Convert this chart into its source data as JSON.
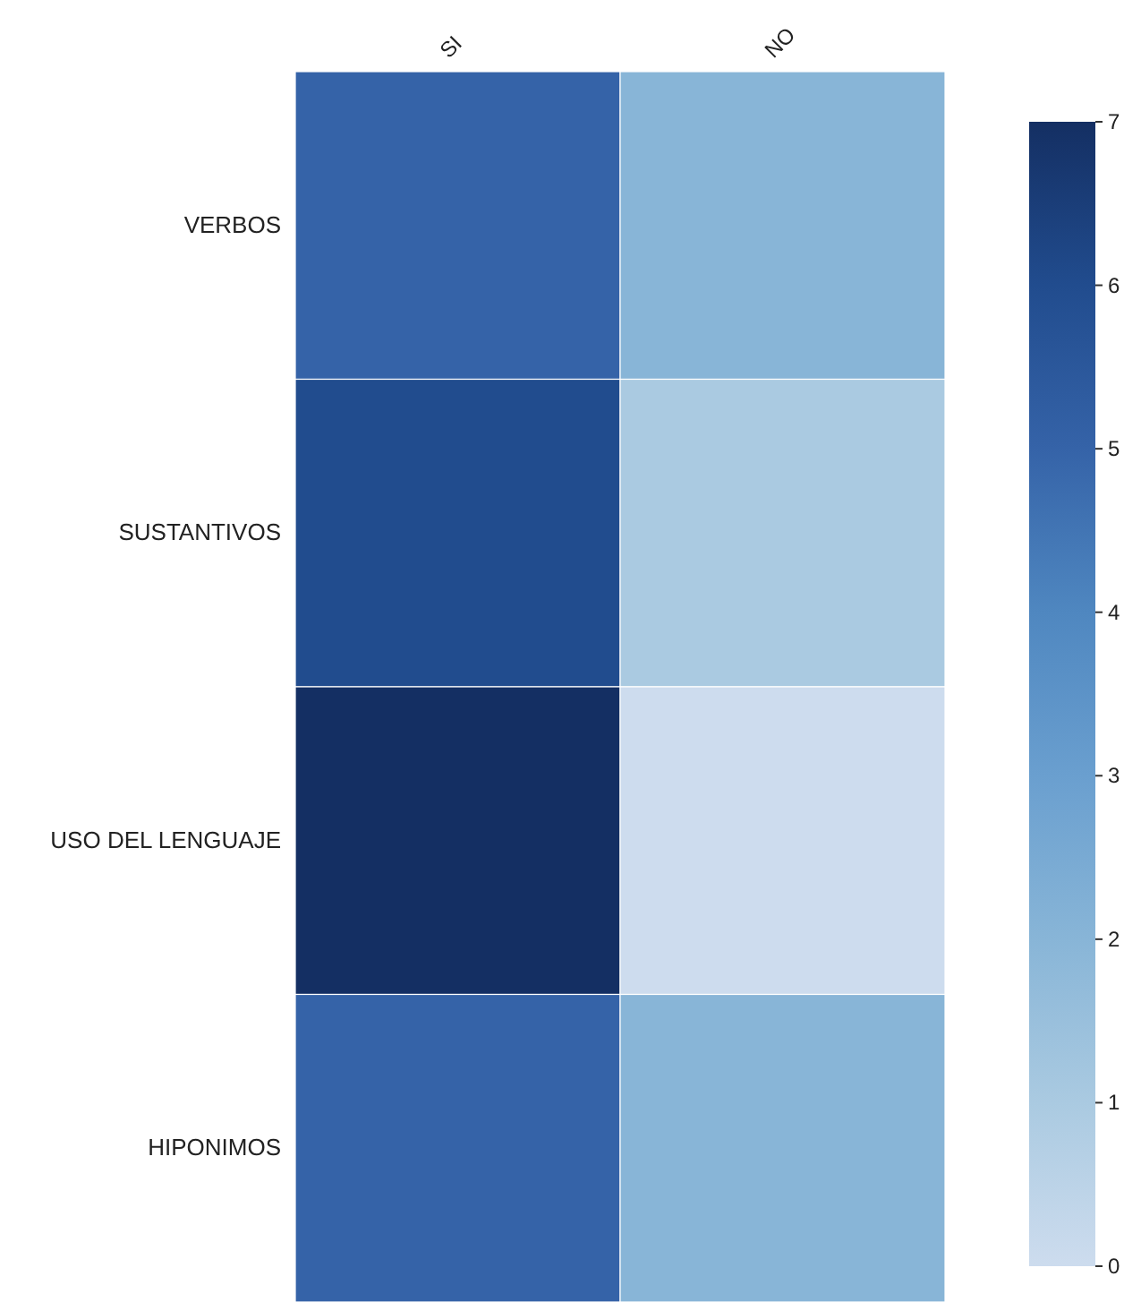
{
  "chart_data": {
    "type": "heatmap",
    "categories": [
      "SI",
      "NO"
    ],
    "y_categories": [
      "VERBOS",
      "SUSTANTIVOS",
      "USO DEL LENGUAJE",
      "HIPONIMOS"
    ],
    "cells": [
      [
        5,
        2
      ],
      [
        6,
        1
      ],
      [
        7,
        0
      ],
      [
        5,
        2
      ]
    ],
    "clim": [
      0,
      7
    ],
    "cticks": [
      0,
      1,
      2,
      3,
      4,
      5,
      6,
      7
    ]
  }
}
